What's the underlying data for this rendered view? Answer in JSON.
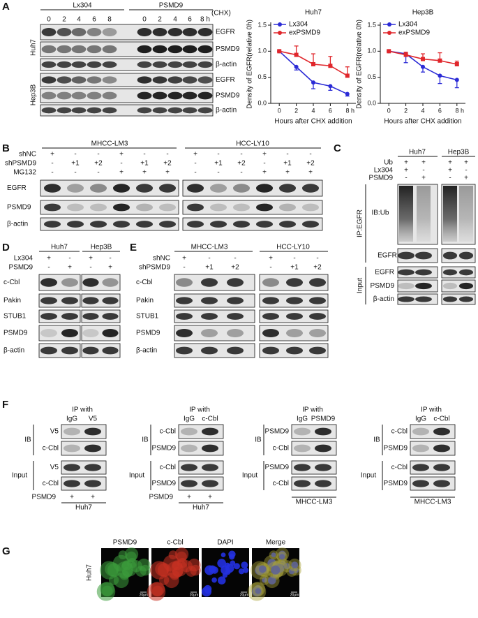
{
  "panel_a": {
    "label": "A",
    "groups": [
      "Lx304",
      "PSMD9"
    ],
    "treatment": "(CHX)",
    "lanes": [
      "0",
      "2",
      "4",
      "6",
      "8",
      "0",
      "2",
      "4",
      "6",
      "8 h"
    ],
    "cell_lines": [
      "Huh7",
      "Hep3B"
    ],
    "blots": [
      "EGFR",
      "PSMD9",
      "β-actin",
      "EGFR",
      "PSMD9",
      "β-actin"
    ],
    "charts": [
      {
        "type": "line",
        "title": "Huh7",
        "y_label": "Density of EGFR(relative 0h)",
        "x_label": "Hours after CHX addition",
        "x": [
          0,
          2,
          4,
          6,
          8
        ],
        "xlim": [
          -1,
          9
        ],
        "xticks": [
          0,
          2,
          4,
          6,
          {
            "value": 8,
            "label": "8 h"
          }
        ],
        "ylim": [
          0,
          1.5
        ],
        "yticks": [
          {
            "value": 0,
            "label": "0.0"
          },
          {
            "value": 0.5,
            "label": "0.5"
          },
          {
            "value": 1,
            "label": "1.0"
          },
          {
            "value": 1.5,
            "label": "1.5"
          }
        ],
        "series": [
          {
            "name": "Lx304",
            "color": "#2b2bd6",
            "values": [
              1.0,
              0.7,
              0.4,
              0.33,
              0.18
            ],
            "errors": [
              0,
              0.06,
              0.12,
              0.08,
              0.04
            ]
          },
          {
            "name": "exPSMD9",
            "color": "#e0262b",
            "values": [
              1.0,
              0.93,
              0.75,
              0.72,
              0.53
            ],
            "errors": [
              0,
              0.17,
              0.2,
              0.18,
              0.17
            ]
          }
        ]
      },
      {
        "type": "line",
        "title": "Hep3B",
        "y_label": "Density of EGFR(relative 0h)",
        "x_label": "Hours after CHX addition",
        "x": [
          0,
          2,
          4,
          6,
          8
        ],
        "xlim": [
          -1,
          9
        ],
        "xticks": [
          0,
          2,
          4,
          6,
          {
            "value": 8,
            "label": "8 h"
          }
        ],
        "ylim": [
          0,
          1.5
        ],
        "yticks": [
          {
            "value": 0,
            "label": "0.0"
          },
          {
            "value": 0.5,
            "label": "0.5"
          },
          {
            "value": 1,
            "label": "1.0"
          },
          {
            "value": 1.5,
            "label": "1.5"
          }
        ],
        "series": [
          {
            "name": "Lx304",
            "color": "#2b2bd6",
            "values": [
              1.0,
              0.95,
              0.7,
              0.53,
              0.45
            ],
            "errors": [
              0,
              0.17,
              0.1,
              0.15,
              0.15
            ]
          },
          {
            "name": "exPSMD9",
            "color": "#e0262b",
            "values": [
              1.0,
              0.93,
              0.85,
              0.82,
              0.75
            ],
            "errors": [
              0,
              0.05,
              0.1,
              0.15,
              0.06
            ]
          }
        ]
      }
    ]
  },
  "panel_b": {
    "label": "B",
    "groups": [
      "MHCC-LM3",
      "HCC-LY10"
    ],
    "conditions": [
      {
        "name": "shNC",
        "signs": [
          "+",
          "-",
          "-",
          "+",
          "-",
          "-",
          "+",
          "-",
          "-",
          "+",
          "-",
          "-"
        ]
      },
      {
        "name": "shPSMD9",
        "signs": [
          "-",
          "+1",
          "+2",
          "-",
          "+1",
          "+2",
          "-",
          "+1",
          "+2",
          "-",
          "+1",
          "+2"
        ]
      },
      {
        "name": "MG132",
        "signs": [
          "-",
          "-",
          "-",
          "+",
          "+",
          "+",
          "-",
          "-",
          "-",
          "+",
          "+",
          "+"
        ]
      }
    ],
    "blots": [
      "EGFR",
      "PSMD9",
      "β-actin"
    ]
  },
  "panel_c": {
    "label": "C",
    "groups": [
      "Huh7",
      "Hep3B"
    ],
    "conditions": [
      {
        "name": "Ub",
        "signs": [
          "+",
          "+",
          "+",
          "+"
        ]
      },
      {
        "name": "Lx304",
        "signs": [
          "+",
          "-",
          "+",
          "-"
        ]
      },
      {
        "name": "PSMD9",
        "signs": [
          "-",
          "+",
          "-",
          "+"
        ]
      }
    ],
    "ip_label": "IP:EGFR",
    "ib_label": "IB:Ub",
    "ip_blots": [
      "EGFR"
    ],
    "input_label": "Input",
    "input_blots": [
      "EGFR",
      "PSMD9",
      "β-actin"
    ]
  },
  "panel_d": {
    "label": "D",
    "groups": [
      "Huh7",
      "Hep3B"
    ],
    "conditions": [
      {
        "name": "Lx304",
        "signs": [
          "+",
          "-",
          "+",
          "-"
        ]
      },
      {
        "name": "PSMD9",
        "signs": [
          "-",
          "+",
          "-",
          "+"
        ]
      }
    ],
    "blots": [
      "c-Cbl",
      "Pakin",
      "STUB1",
      "PSMD9",
      "β-actin"
    ]
  },
  "panel_e": {
    "label": "E",
    "groups": [
      "MHCC-LM3",
      "HCC-LY10"
    ],
    "conditions": [
      {
        "name": "shNC",
        "signs": [
          "+",
          "-",
          "-",
          "+",
          "-",
          "-"
        ]
      },
      {
        "name": "shPSMD9",
        "signs": [
          "-",
          "+1",
          "+2",
          "-",
          "+1",
          "+2"
        ]
      }
    ],
    "blots": [
      "c-Cbl",
      "Pakin",
      "STUB1",
      "PSMD9",
      "β-actin"
    ]
  },
  "panel_f": {
    "label": "F",
    "subpanels": [
      {
        "ip_with": "IP with",
        "lanes": [
          "IgG",
          "V5"
        ],
        "ib_label": "IB",
        "ib_blots": [
          "V5",
          "c-Cbl"
        ],
        "input_label": "Input",
        "input_blots": [
          "V5",
          "c-Cbl"
        ],
        "condition": {
          "name": "PSMD9",
          "signs": [
            "+",
            "+"
          ]
        },
        "cell_line": "Huh7"
      },
      {
        "ip_with": "IP with",
        "lanes": [
          "IgG",
          "c-Cbl"
        ],
        "ib_label": "IB",
        "ib_blots": [
          "c-Cbl",
          "PSMD9"
        ],
        "input_label": "Input",
        "input_blots": [
          "c-Cbl",
          "PSMD9"
        ],
        "condition": {
          "name": "PSMD9",
          "signs": [
            "+",
            "+"
          ]
        },
        "cell_line": "Huh7"
      },
      {
        "ip_with": "IP with",
        "lanes": [
          "IgG",
          "PSMD9"
        ],
        "ib_label": "IB",
        "ib_blots": [
          "PSMD9",
          "c-Cbl"
        ],
        "input_label": "Input",
        "input_blots": [
          "PSMD9",
          "c-Cbl"
        ],
        "cell_line": "MHCC-LM3"
      },
      {
        "ip_with": "IP with",
        "lanes": [
          "IgG",
          "c-Cbl"
        ],
        "ib_label": "IB",
        "ib_blots": [
          "c-Cbl",
          "PSMD9"
        ],
        "input_label": "Input",
        "input_blots": [
          "c-Cbl",
          "PSMD9"
        ],
        "cell_line": "MHCC-LM3"
      }
    ]
  },
  "panel_g": {
    "label": "G",
    "cell_line": "Huh7",
    "channels": [
      "PSMD9",
      "c-Cbl",
      "DAPI",
      "Merge"
    ],
    "scale_bar": "20μm"
  }
}
